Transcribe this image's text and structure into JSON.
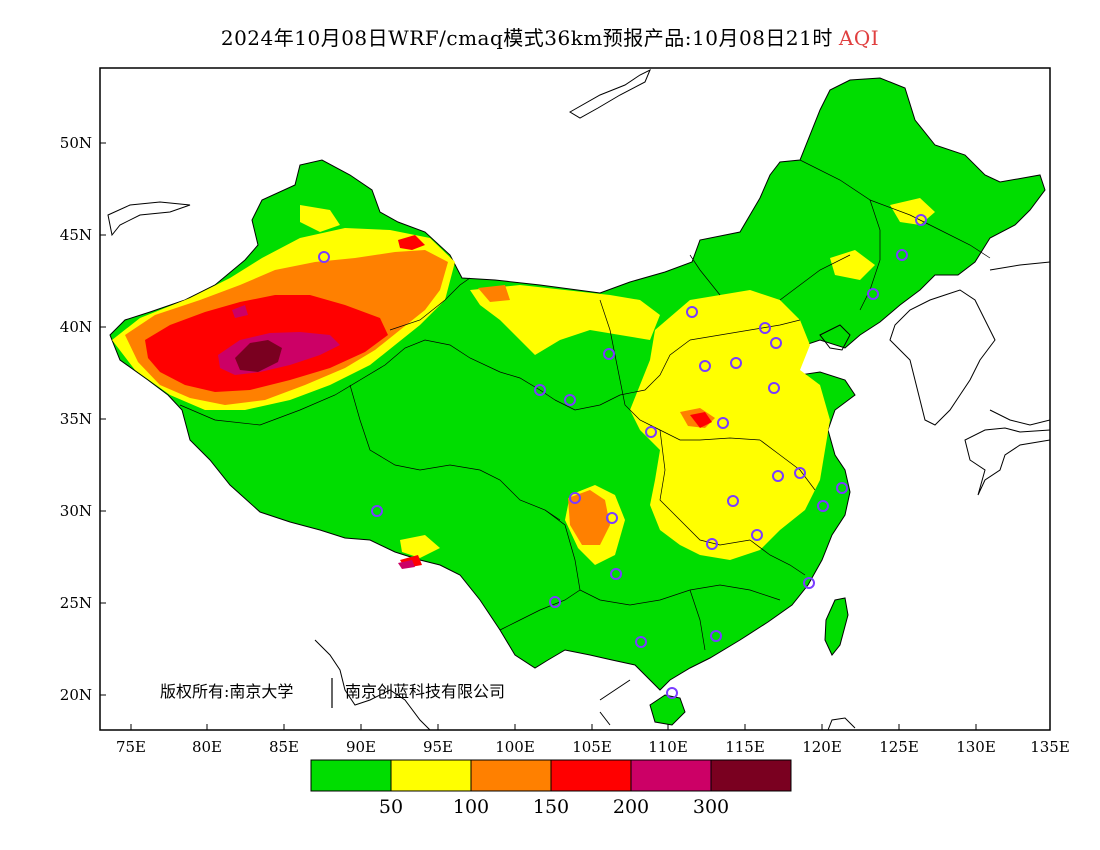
{
  "title": {
    "main": "2024年10月08日WRF/cmaq模式36km预报产品:10月08日21时",
    "variable": "AQI",
    "variable_color": "#e04040"
  },
  "axes": {
    "lat_labels": [
      "50N",
      "45N",
      "40N",
      "35N",
      "30N",
      "25N",
      "20N"
    ],
    "lon_labels": [
      "75E",
      "80E",
      "85E",
      "90E",
      "95E",
      "100E",
      "105E",
      "110E",
      "115E",
      "120E",
      "125E",
      "130E",
      "135E"
    ]
  },
  "copyright": {
    "part1": "版权所有:南京大学",
    "part2": "南京创蓝科技有限公司"
  },
  "legend": {
    "colors": [
      "#00dd00",
      "#ffff00",
      "#ff8000",
      "#ff0000",
      "#cc0066",
      "#7a0020"
    ],
    "labels": [
      "50",
      "100",
      "150",
      "200",
      "300"
    ]
  },
  "colors": {
    "land_outside": "#ffffff",
    "station_marker": "#7a3cff",
    "boundary": "#000000"
  }
}
